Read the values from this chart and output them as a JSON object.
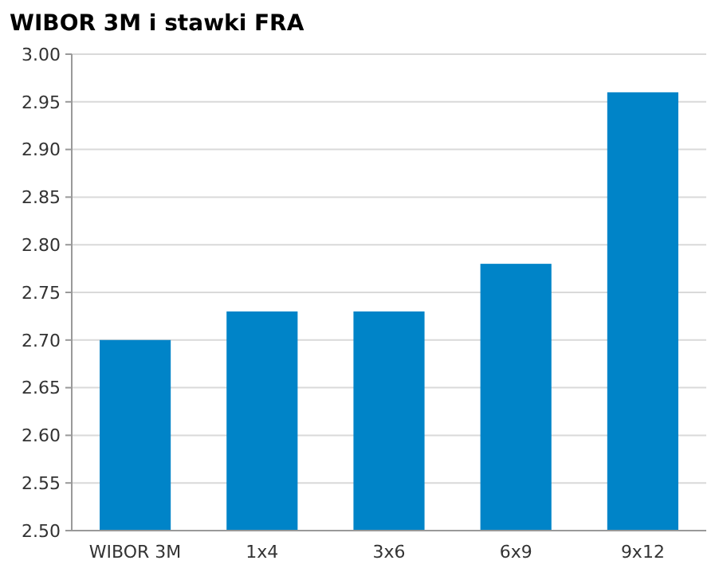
{
  "chart_data": {
    "type": "bar",
    "title": "WIBOR 3M i stawki FRA",
    "categories": [
      "WIBOR 3M",
      "1x4",
      "3x6",
      "6x9",
      "9x12"
    ],
    "values": [
      2.7,
      2.73,
      2.73,
      2.78,
      2.96
    ],
    "color": "#0084c8",
    "ylim": [
      2.5,
      3.0
    ],
    "yticks": [
      {
        "value": 2.5,
        "label": "2.50"
      },
      {
        "value": 2.55,
        "label": "2.55"
      },
      {
        "value": 2.6,
        "label": "2.60"
      },
      {
        "value": 2.65,
        "label": "2.65"
      },
      {
        "value": 2.7,
        "label": "2.70"
      },
      {
        "value": 2.75,
        "label": "2.75"
      },
      {
        "value": 2.8,
        "label": "2.80"
      },
      {
        "value": 2.85,
        "label": "2.85"
      },
      {
        "value": 2.9,
        "label": "2.90"
      },
      {
        "value": 2.95,
        "label": "2.95"
      },
      {
        "value": 3.0,
        "label": "3.00"
      }
    ],
    "grid": "y"
  }
}
